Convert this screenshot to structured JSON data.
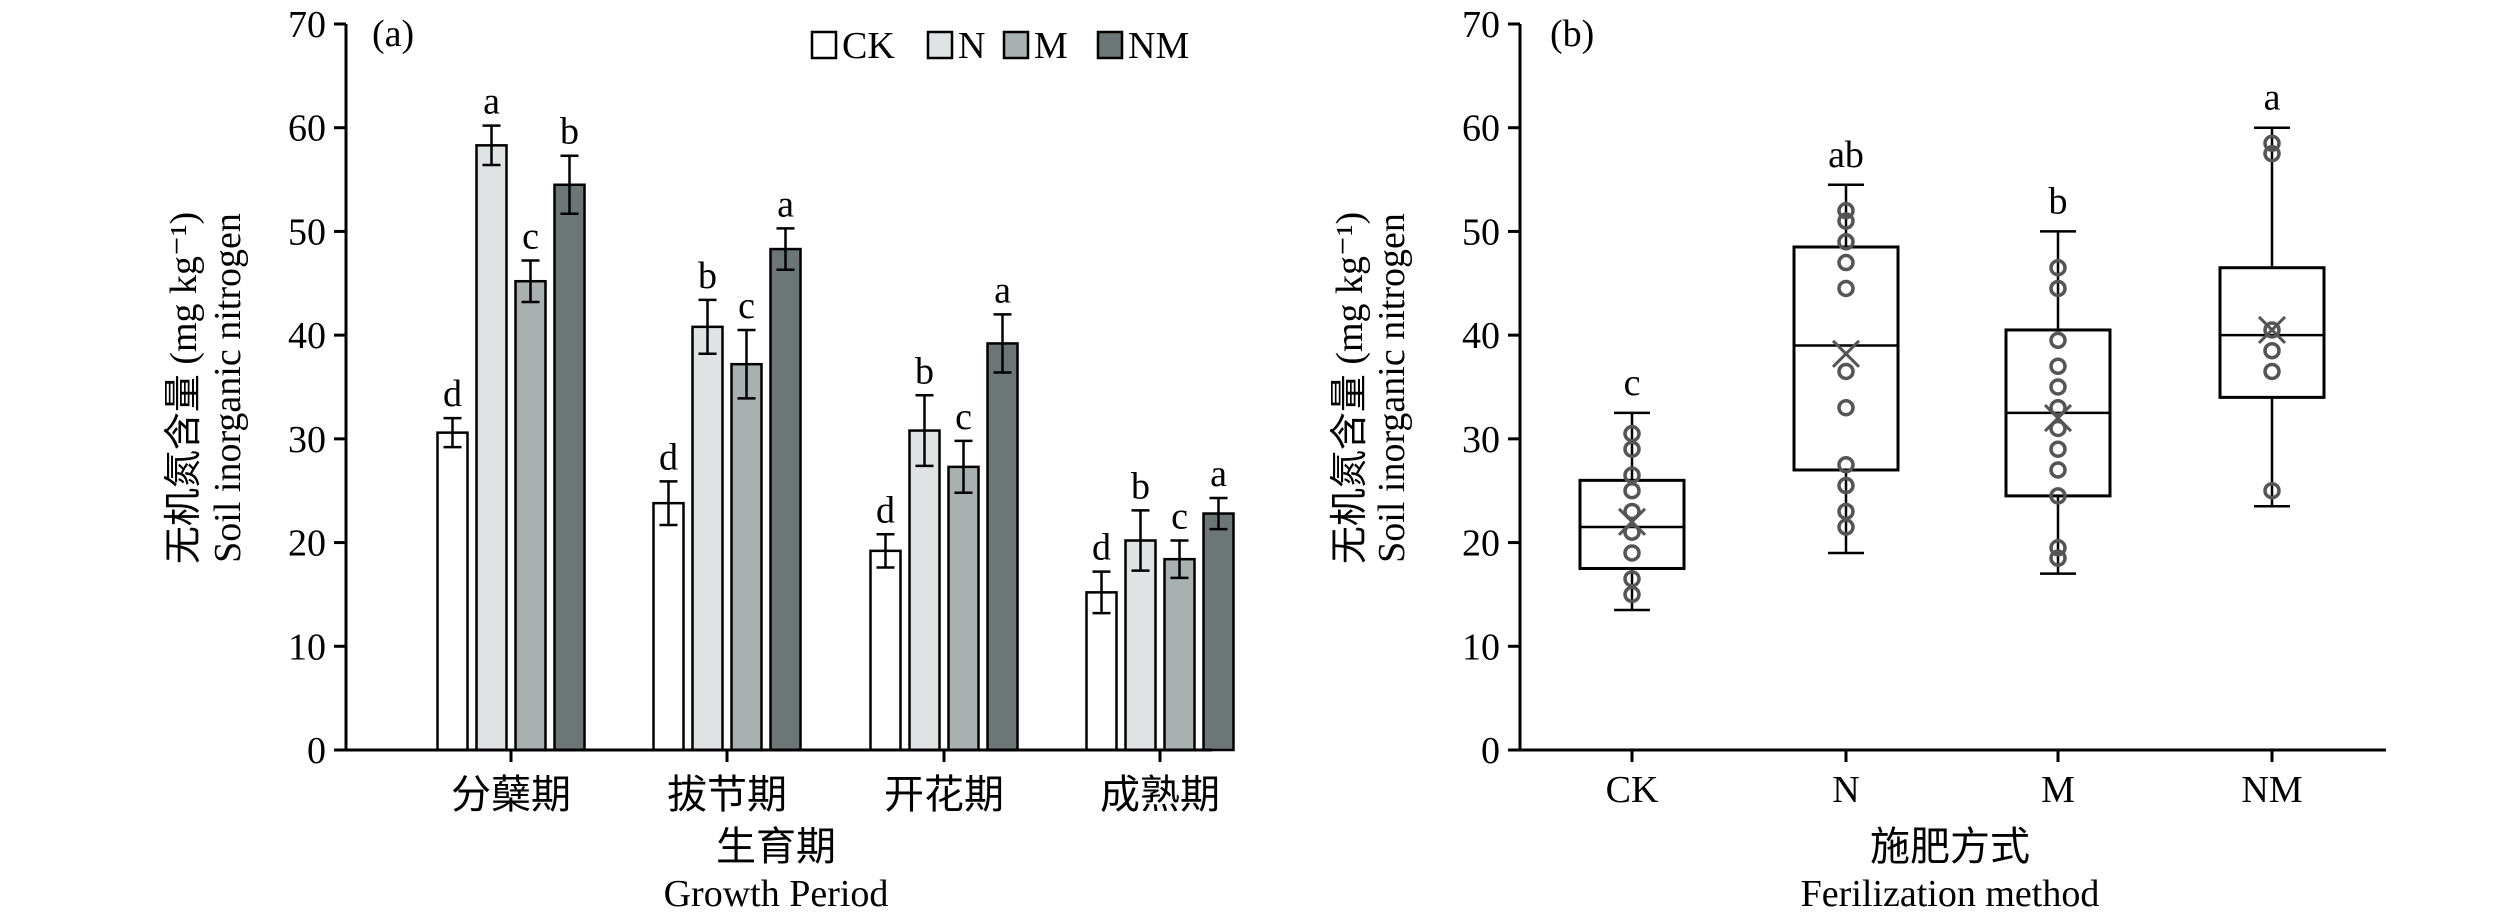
{
  "chart_data": [
    {
      "type": "bar",
      "panel_label": "(a)",
      "ylabel_cn": "无机氮含量 (mg kg⁻¹)",
      "ylabel_en": "Soil inorganic nitrogen",
      "xlabel_cn": "生育期",
      "xlabel_en": "Growth Period",
      "ylim": [
        0,
        70
      ],
      "yticks": [
        0,
        10,
        20,
        30,
        40,
        50,
        60,
        70
      ],
      "categories": [
        "分蘖期",
        "拔节期",
        "开花期",
        "成熟期"
      ],
      "legend_position": "top-right",
      "series": [
        {
          "name": "CK",
          "color": "#ffffff",
          "values": [
            30.6,
            23.8,
            19.2,
            15.2
          ],
          "errors": [
            1.4,
            2.1,
            1.6,
            2.0
          ],
          "letters": [
            "d",
            "d",
            "d",
            "d"
          ]
        },
        {
          "name": "N",
          "color": "#dfe3e3",
          "values": [
            58.3,
            40.8,
            30.8,
            20.2
          ],
          "errors": [
            1.9,
            2.6,
            3.4,
            2.9
          ],
          "letters": [
            "a",
            "b",
            "b",
            "b"
          ]
        },
        {
          "name": "M",
          "color": "#a8b1b0",
          "values": [
            45.2,
            37.2,
            27.3,
            18.4
          ],
          "errors": [
            2.0,
            3.3,
            2.5,
            1.8
          ],
          "letters": [
            "c",
            "c",
            "c",
            "c"
          ]
        },
        {
          "name": "NM",
          "color": "#6c7676",
          "values": [
            54.5,
            48.3,
            39.2,
            22.8
          ],
          "errors": [
            2.8,
            2.0,
            2.8,
            1.5
          ],
          "letters": [
            "b",
            "a",
            "a",
            "a"
          ]
        }
      ]
    },
    {
      "type": "box",
      "panel_label": "(b)",
      "ylabel_cn": "无机氮含量 (mg kg⁻¹)",
      "ylabel_en": "Soil inorganic nitrogen",
      "xlabel_cn": "施肥方式",
      "xlabel_en": "Ferilization method",
      "ylim": [
        0,
        70
      ],
      "yticks": [
        0,
        10,
        20,
        30,
        40,
        50,
        60,
        70
      ],
      "categories": [
        "CK",
        "N",
        "M",
        "NM"
      ],
      "boxes": [
        {
          "category": "CK",
          "min": 13.5,
          "q1": 17.5,
          "median": 21.5,
          "q3": 26.0,
          "max": 32.5,
          "mean": 22.0,
          "letter": "c",
          "points": [
            15.0,
            16.5,
            19.0,
            21.0,
            23.0,
            25.0,
            26.5,
            29.0,
            30.5
          ]
        },
        {
          "category": "N",
          "min": 19.0,
          "q1": 27.0,
          "median": 39.0,
          "q3": 48.5,
          "max": 54.5,
          "mean": 38.2,
          "letter": "ab",
          "points": [
            21.5,
            23.0,
            25.5,
            27.5,
            33.0,
            36.5,
            44.5,
            47.0,
            49.0,
            51.0,
            52.0
          ]
        },
        {
          "category": "M",
          "min": 17.0,
          "q1": 24.5,
          "median": 32.5,
          "q3": 40.5,
          "max": 50.0,
          "mean": 32.0,
          "letter": "b",
          "points": [
            18.5,
            19.5,
            24.5,
            27.0,
            29.0,
            31.0,
            33.0,
            35.0,
            37.0,
            39.5,
            44.5,
            46.5
          ]
        },
        {
          "category": "NM",
          "min": 23.5,
          "q1": 34.0,
          "median": 40.0,
          "q3": 46.5,
          "max": 60.0,
          "mean": 40.5,
          "letter": "a",
          "points": [
            25.0,
            36.5,
            38.5,
            40.5,
            57.5,
            58.5
          ]
        }
      ]
    }
  ]
}
